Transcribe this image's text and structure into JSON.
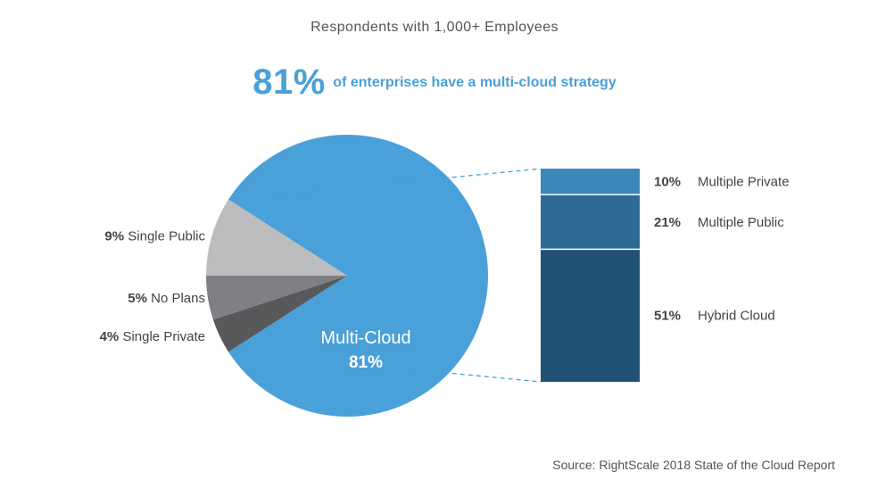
{
  "subtitle": "Respondents with 1,000+ Employees",
  "headline": {
    "value": "81%",
    "text": "of enterprises have a multi-cloud strategy"
  },
  "source": "Source: RightScale 2018 State of the Cloud Report",
  "colors": {
    "accent": "#4aa0d8",
    "multi_cloud": "#4aa0d8",
    "single_public": "#bcbdbf",
    "no_plans": "#7f8083",
    "single_private": "#58595b",
    "multiple_private": "#3d88bb",
    "multiple_public": "#2d6a94",
    "hybrid_cloud": "#215275",
    "label_text": "#444444",
    "connector": "#4aa0d8"
  },
  "chart_data": [
    {
      "type": "pie",
      "title": "Respondents with 1,000+ Employees",
      "slices": [
        {
          "label": "Multi-Cloud",
          "pct_label": "81%",
          "value": 81,
          "color_key": "multi_cloud"
        },
        {
          "label": "Single Private",
          "pct_label": "4%",
          "value": 4,
          "color_key": "single_private"
        },
        {
          "label": "No Plans",
          "pct_label": "5%",
          "value": 5,
          "color_key": "no_plans"
        },
        {
          "label": "Single Public",
          "pct_label": "9%",
          "value": 9,
          "color_key": "single_public"
        }
      ]
    },
    {
      "type": "bar",
      "stacked": true,
      "parent": "Multi-Cloud",
      "segments": [
        {
          "label": "Multiple Private",
          "pct_label": "10%",
          "value": 10,
          "color_key": "multiple_private"
        },
        {
          "label": "Multiple Public",
          "pct_label": "21%",
          "value": 21,
          "color_key": "multiple_public"
        },
        {
          "label": "Hybrid Cloud",
          "pct_label": "51%",
          "value": 51,
          "color_key": "hybrid_cloud"
        }
      ]
    }
  ]
}
